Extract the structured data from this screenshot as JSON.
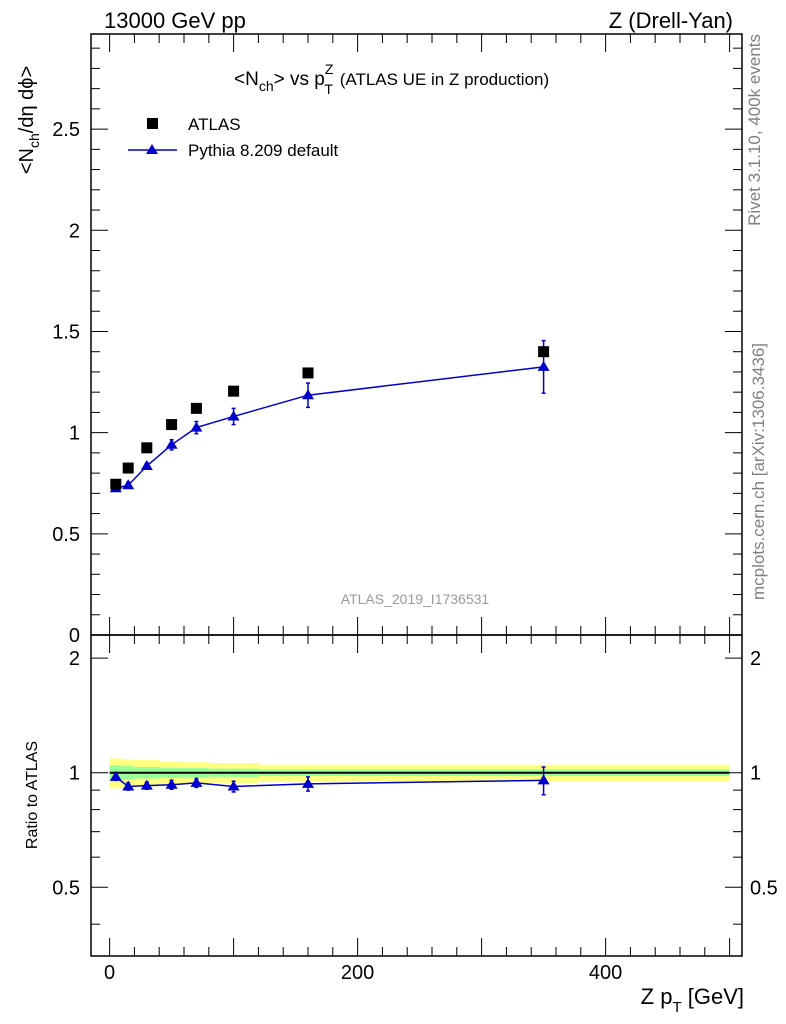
{
  "header": {
    "left": "13000 GeV pp",
    "right": "Z (Drell-Yan)"
  },
  "side_labels": {
    "rivet": "Rivet 3.1.10,  400k events",
    "mcplots": "mcplots.cern.ch [arXiv:1306.3436]"
  },
  "watermark": "ATLAS_2019_I1736531",
  "colors": {
    "mc": "#0000cc",
    "data": "#000000",
    "band_inner": "#99ff99",
    "band_outer": "#ffff80",
    "watermark": "#999999",
    "side_text": "#808080"
  },
  "chart_data": [
    {
      "type": "line",
      "panel": "main",
      "title": {
        "pre": "<N",
        "sub1": "ch",
        "mid": "> vs p",
        "sup": "Z",
        "sub2": "T",
        "post": " (ATLAS UE in Z production)"
      },
      "ylabel": {
        "p1": "<N",
        "sub": "ch",
        "p2": "/dη dϕ>"
      },
      "xlim": [
        -15,
        510
      ],
      "ylim": [
        0,
        2.97
      ],
      "x_ticks": [
        0,
        200,
        400
      ],
      "y_ticks": [
        0.5,
        1,
        1.5,
        2,
        2.5
      ],
      "y_tick_labels": [
        "0.5",
        "1",
        "1.5",
        "2",
        "2.5"
      ],
      "y_cut_label": "0",
      "legend": {
        "position": "top-left",
        "data": "ATLAS",
        "mc": "Pythia 8.209 default"
      },
      "series": [
        {
          "name": "ATLAS",
          "marker": "square",
          "x": [
            5,
            15,
            30,
            50,
            70,
            100,
            160,
            350
          ],
          "y": [
            0.745,
            0.825,
            0.925,
            1.04,
            1.12,
            1.205,
            1.295,
            1.4
          ]
        },
        {
          "name": "Pythia 8.209 default",
          "marker": "triangle",
          "x": [
            5,
            15,
            30,
            50,
            70,
            100,
            160,
            350
          ],
          "y": [
            0.725,
            0.74,
            0.835,
            0.94,
            1.025,
            1.08,
            1.185,
            1.325
          ],
          "yerr": [
            0.015,
            0.015,
            0.015,
            0.025,
            0.03,
            0.04,
            0.06,
            0.13
          ]
        }
      ]
    },
    {
      "type": "line",
      "panel": "ratio",
      "ylabel": "Ratio to ATLAS",
      "xlabel": {
        "p1": "Z p",
        "sub": "T",
        "p2": " [GeV]"
      },
      "xlim": [
        -15,
        510
      ],
      "ylim": [
        0.33,
        2.3
      ],
      "x_ticks": [
        0,
        200,
        400
      ],
      "x_tick_labels": [
        "0",
        "200",
        "400"
      ],
      "y_ticks": [
        0.5,
        1,
        2
      ],
      "y_tick_labels": [
        "0.5",
        "1",
        "2"
      ],
      "bands": {
        "edges": [
          0,
          10,
          20,
          40,
          60,
          80,
          120,
          200,
          500
        ],
        "inner": [
          0.045,
          0.04,
          0.035,
          0.03,
          0.03,
          0.025,
          0.02,
          0.02
        ],
        "outer": [
          0.09,
          0.085,
          0.08,
          0.07,
          0.065,
          0.06,
          0.05,
          0.05
        ]
      },
      "series": [
        {
          "name": "Pythia 8.209 default",
          "x": [
            5,
            15,
            30,
            50,
            70,
            100,
            160,
            350
          ],
          "y": [
            0.975,
            0.92,
            0.925,
            0.93,
            0.94,
            0.92,
            0.935,
            0.955
          ],
          "yerr": [
            0.02,
            0.02,
            0.02,
            0.025,
            0.025,
            0.03,
            0.04,
            0.08
          ]
        }
      ]
    }
  ]
}
